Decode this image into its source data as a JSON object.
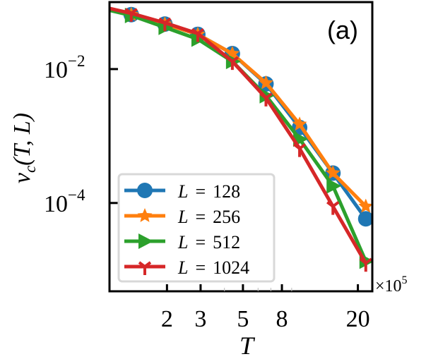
{
  "chart_data": {
    "type": "line",
    "panel_label": "(a)",
    "xlabel": "T",
    "ylabel_parts": {
      "v": "v",
      "sub": "c",
      "args": "(T, L)"
    },
    "x_multiplier": {
      "times": "×10",
      "exp": "5"
    },
    "xscale": "log",
    "yscale": "log",
    "xlim": [
      1.0,
      23.8
    ],
    "ylim": [
      4.8e-06,
      0.1
    ],
    "xticks": [
      {
        "value": 2,
        "label": "2"
      },
      {
        "value": 3,
        "label": "3"
      },
      {
        "value": 5,
        "label": "5"
      },
      {
        "value": 8,
        "label": "8"
      },
      {
        "value": 20,
        "label": "20"
      }
    ],
    "yticks": [
      {
        "value": 0.01,
        "base": "10",
        "exp": "−2"
      },
      {
        "value": 0.0001,
        "base": "10",
        "exp": "−4"
      }
    ],
    "legend_placement": "lower-left",
    "x": [
      0.87,
      1.3,
      1.95,
      2.9,
      4.4,
      6.6,
      9.9,
      14.8,
      22
    ],
    "series": [
      {
        "name": "L = 128",
        "L_label": "L",
        "eq": "=",
        "value": "128",
        "color": "#1f77b4",
        "marker": "circle",
        "values": [
          0.085,
          0.065,
          0.047,
          0.033,
          0.017,
          0.006,
          0.00134,
          0.00028,
          5.8e-05
        ]
      },
      {
        "name": "L = 256",
        "L_label": "L",
        "eq": "=",
        "value": "256",
        "color": "#ff7f0e",
        "marker": "star",
        "values": [
          0.085,
          0.065,
          0.047,
          0.033,
          0.017,
          0.0062,
          0.0015,
          0.00028,
          8.9e-05
        ]
      },
      {
        "name": "L = 512",
        "L_label": "L",
        "eq": "=",
        "value": "512",
        "color": "#2ca02c",
        "marker": "triangle-right",
        "values": [
          0.083,
          0.063,
          0.042,
          0.028,
          0.013,
          0.004,
          0.0009,
          0.00018,
          1.35e-05
        ]
      },
      {
        "name": "L = 1024",
        "L_label": "L",
        "eq": "=",
        "value": "1024",
        "color": "#d62728",
        "marker": "tri-down",
        "values": [
          0.088,
          0.068,
          0.049,
          0.034,
          0.013,
          0.0037,
          0.00065,
          8.9e-05,
          1.26e-05
        ]
      }
    ]
  }
}
